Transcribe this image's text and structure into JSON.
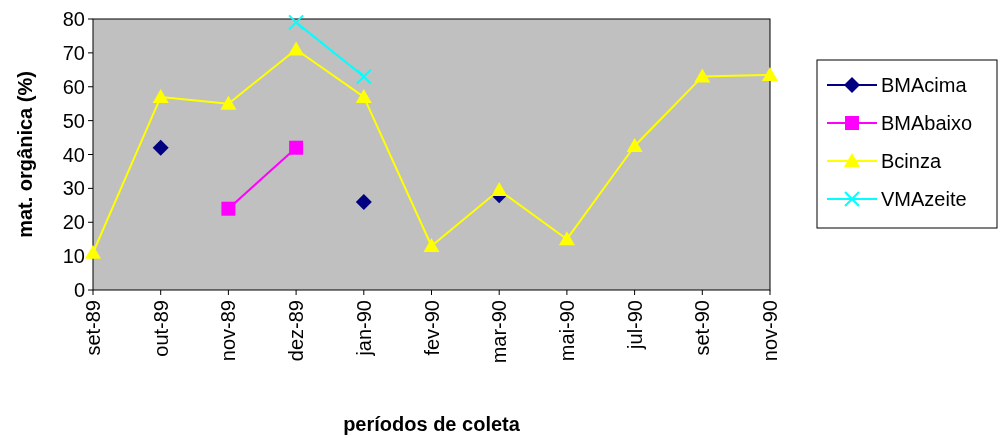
{
  "chart_data": {
    "type": "line",
    "xlabel": "períodos de coleta",
    "ylabel": "mat. orgânica (%)",
    "categories": [
      "set-89",
      "out-89",
      "nov-89",
      "dez-89",
      "jan-90",
      "fev-90",
      "mar-90",
      "mai-90",
      "jul-90",
      "set-90",
      "nov-90"
    ],
    "ylim": [
      0,
      80
    ],
    "yticks": [
      0,
      10,
      20,
      30,
      40,
      50,
      60,
      70,
      80
    ],
    "grid": false,
    "legend": "right",
    "series": [
      {
        "name": "BMAcima",
        "type": "scatter",
        "color": "#000080",
        "marker": "diamond",
        "values": [
          null,
          42,
          null,
          null,
          26,
          null,
          28,
          null,
          null,
          null,
          null
        ]
      },
      {
        "name": "BMAbaixo",
        "color": "#ff00ff",
        "marker": "square",
        "values": [
          null,
          null,
          24,
          42,
          null,
          null,
          null,
          null,
          null,
          null,
          null
        ]
      },
      {
        "name": "Bcinza",
        "color": "#ffff00",
        "marker": "triangle",
        "values": [
          11,
          57,
          55,
          71,
          57,
          13,
          29.5,
          15,
          42.5,
          63,
          63.5
        ]
      },
      {
        "name": "VMAzeite",
        "color": "#00ffff",
        "marker": "cross",
        "values": [
          null,
          null,
          null,
          79,
          63,
          null,
          null,
          null,
          null,
          null,
          null
        ]
      }
    ]
  }
}
